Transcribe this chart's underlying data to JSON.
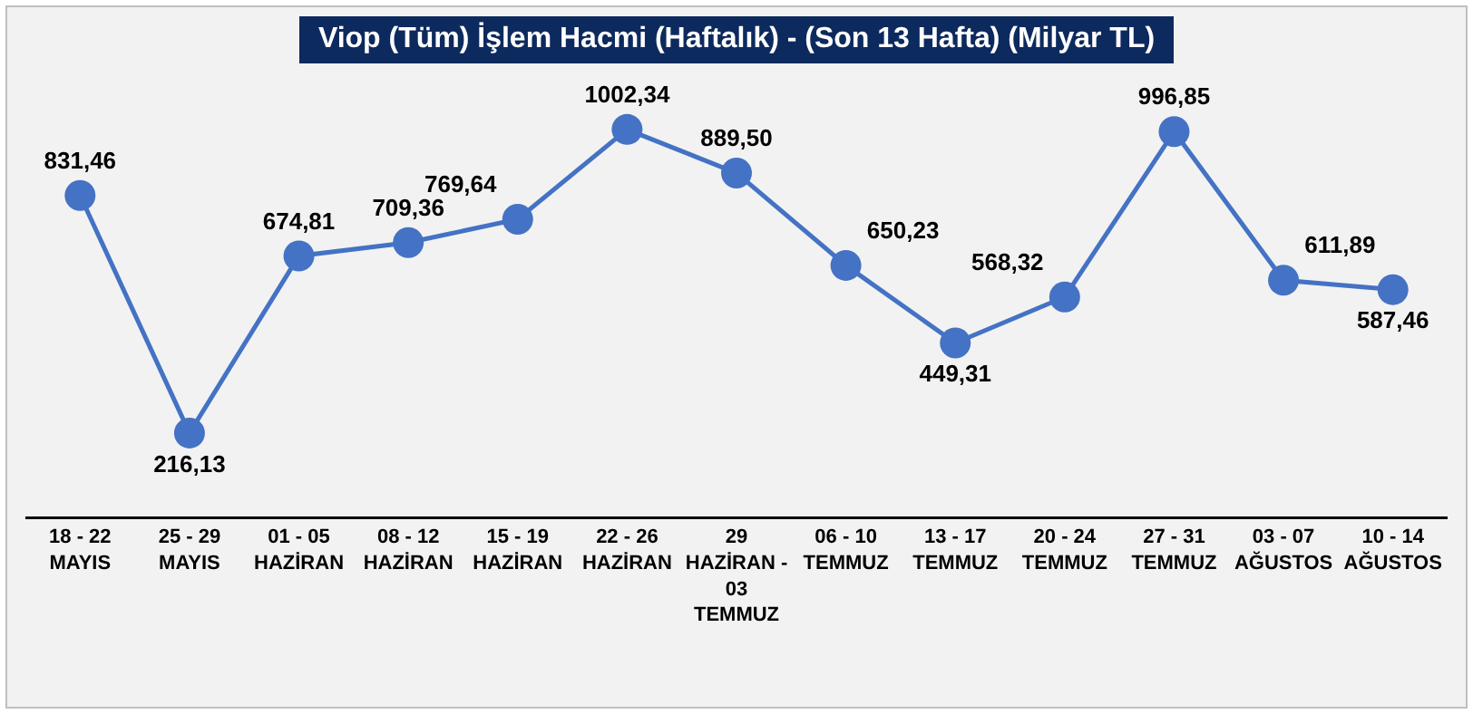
{
  "chart_data": {
    "type": "line",
    "title": "Viop (Tüm) İşlem Hacmi (Haftalık) - (Son 13 Hafta) (Milyar TL)",
    "categories": [
      "18 - 22\nMAYIS",
      "25 - 29\nMAYIS",
      "01 - 05\nHAZİRAN",
      "08 - 12\nHAZİRAN",
      "15 - 19\nHAZİRAN",
      "22 - 26\nHAZİRAN",
      "29\nHAZİRAN -\n03\nTEMMUZ",
      "06 - 10\nTEMMUZ",
      "13 - 17\nTEMMUZ",
      "20 - 24\nTEMMUZ",
      "27 - 31\nTEMMUZ",
      "03 - 07\nAĞUSTOS",
      "10 - 14\nAĞUSTOS"
    ],
    "series": [
      {
        "color": "#4472c4",
        "values": [
          831.46,
          216.13,
          674.81,
          709.36,
          769.64,
          1002.34,
          889.5,
          650.23,
          449.31,
          568.32,
          996.85,
          611.89,
          587.46
        ],
        "value_labels": [
          "831,46",
          "216,13",
          "674,81",
          "709,36",
          "769,64",
          "1002,34",
          "889,50",
          "650,23",
          "449,31",
          "568,32",
          "996,85",
          "611,89",
          "587,46"
        ]
      }
    ],
    "marker": "circle",
    "line_style": "solid",
    "legend": false,
    "tick_labels": "x"
  }
}
